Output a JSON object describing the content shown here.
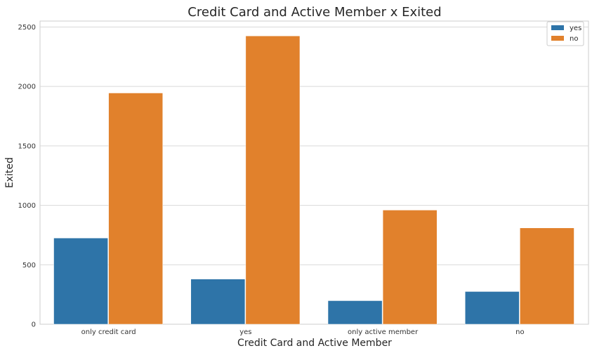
{
  "chart_data": {
    "type": "bar",
    "title": "Credit Card and Active Member x Exited",
    "xlabel": "Credit Card and Active Member",
    "ylabel": "Exited",
    "categories": [
      "only credit card",
      "yes",
      "only active member",
      "no"
    ],
    "series": [
      {
        "name": "yes",
        "values": [
          725,
          380,
          198,
          275
        ],
        "color": "#2e74a8"
      },
      {
        "name": "no",
        "values": [
          1945,
          2425,
          960,
          810
        ],
        "color": "#e1812c"
      }
    ],
    "ylim": [
      0,
      2550
    ],
    "yticks": [
      0,
      500,
      1000,
      1500,
      2000,
      2500
    ],
    "grid": true,
    "legend_position": "top-right"
  }
}
